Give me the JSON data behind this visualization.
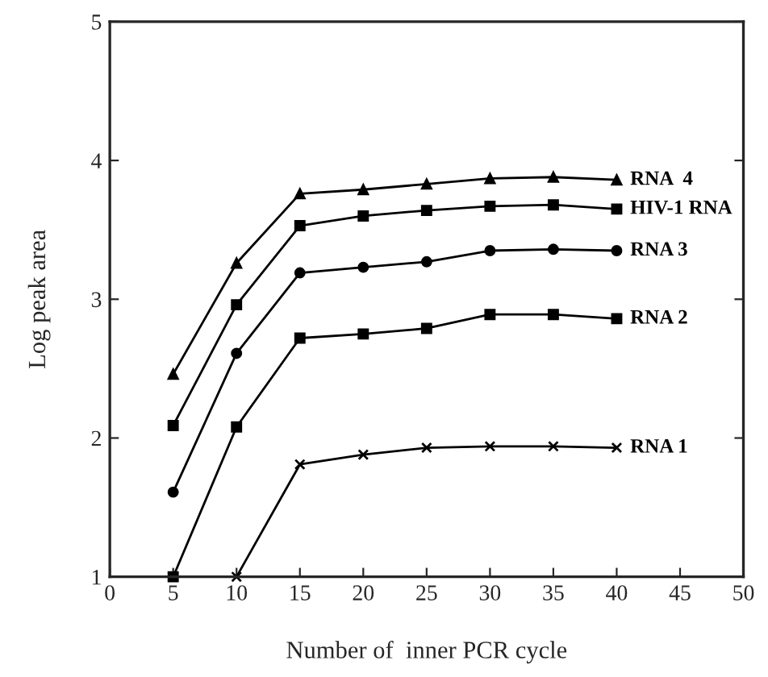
{
  "chart_data": {
    "type": "line",
    "xlabel": "Number of  inner PCR cycle",
    "ylabel": "Log peak area",
    "x": [
      5,
      10,
      15,
      20,
      25,
      30,
      35,
      40
    ],
    "series": [
      {
        "name": "RNA  4",
        "color": "#000000",
        "marker": "triangle",
        "values": [
          2.46,
          3.26,
          3.76,
          3.79,
          3.83,
          3.87,
          3.88,
          3.86
        ]
      },
      {
        "name": "HIV-1 RNA",
        "color": "#000000",
        "marker": "square",
        "values": [
          2.09,
          2.96,
          3.53,
          3.6,
          3.64,
          3.67,
          3.68,
          3.65
        ]
      },
      {
        "name": "RNA 3",
        "color": "#000000",
        "marker": "circle",
        "values": [
          1.61,
          2.61,
          3.19,
          3.23,
          3.27,
          3.35,
          3.36,
          3.35
        ]
      },
      {
        "name": "RNA 2",
        "color": "#000000",
        "marker": "square",
        "values": [
          1.0,
          2.08,
          2.72,
          2.75,
          2.79,
          2.89,
          2.89,
          2.86
        ]
      },
      {
        "name": "RNA 1",
        "color": "#000000",
        "marker": "cross",
        "values": [
          null,
          1.0,
          1.81,
          1.88,
          1.93,
          1.94,
          1.94,
          1.93
        ]
      }
    ],
    "xlim": [
      0,
      50
    ],
    "xticks": [
      0,
      5,
      10,
      15,
      20,
      25,
      30,
      35,
      40,
      45,
      50
    ],
    "ylim": [
      1,
      5
    ],
    "yticks": [
      1,
      2,
      3,
      4,
      5
    ],
    "grid": false,
    "legend": false,
    "line_style": "solid"
  }
}
